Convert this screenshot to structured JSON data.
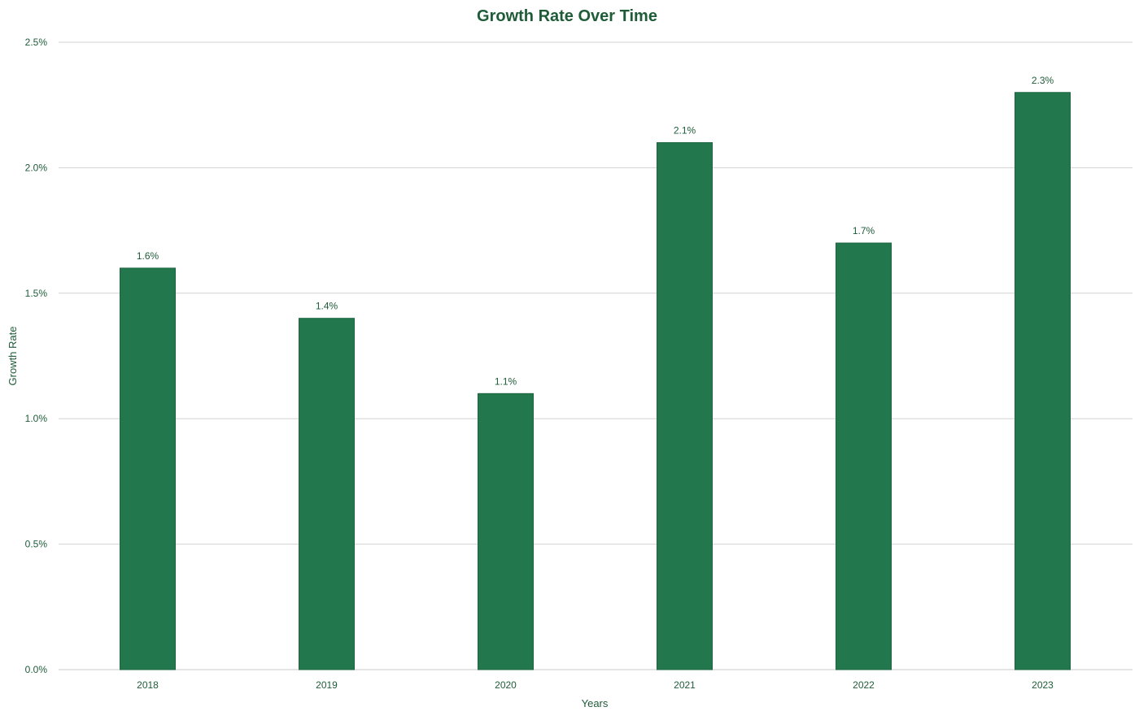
{
  "colors": {
    "bar": "#23774c",
    "bar_edge": "#1c6540",
    "text": "#1e5c38",
    "tick_text": "#1e5c38",
    "gridline": "#d3d3d3",
    "axis_line": "#c8c8c8"
  },
  "chart_data": {
    "type": "bar",
    "title": "Growth Rate Over Time",
    "xlabel": "Years",
    "ylabel": "Growth Rate",
    "categories": [
      "2018",
      "2019",
      "2020",
      "2021",
      "2022",
      "2023"
    ],
    "values": [
      1.6,
      1.4,
      1.1,
      2.1,
      1.7,
      2.3
    ],
    "data_labels": [
      "1.6%",
      "1.4%",
      "1.1%",
      "2.1%",
      "1.7%",
      "2.3%"
    ],
    "ylim": [
      0,
      2.5
    ],
    "yticks": [
      0,
      0.5,
      1.0,
      1.5,
      2.0,
      2.5
    ],
    "ytick_labels": [
      "0.0%",
      "0.5%",
      "1.0%",
      "1.5%",
      "2.0%",
      "2.5%"
    ],
    "grid": true,
    "legend": false
  }
}
